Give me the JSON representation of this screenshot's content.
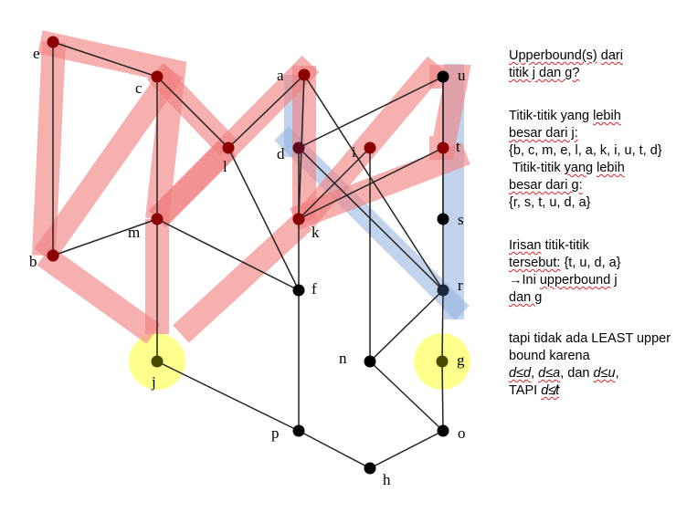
{
  "nodes": [
    {
      "id": "e",
      "label": "e",
      "color": "#8b0000"
    },
    {
      "id": "c",
      "label": "c",
      "color": "#8b0000"
    },
    {
      "id": "a",
      "label": "a",
      "color": "#8b0000"
    },
    {
      "id": "u",
      "label": "u",
      "color": "#000000"
    },
    {
      "id": "l",
      "label": "l",
      "color": "#8b0000"
    },
    {
      "id": "d",
      "label": "d",
      "color": "#5a0a1a"
    },
    {
      "id": "i",
      "label": "i",
      "color": "#8b0000"
    },
    {
      "id": "t",
      "label": "t",
      "color": "#8b0000"
    },
    {
      "id": "m",
      "label": "m",
      "color": "#8b0000"
    },
    {
      "id": "k",
      "label": "k",
      "color": "#8b0000"
    },
    {
      "id": "s",
      "label": "s",
      "color": "#000000"
    },
    {
      "id": "b",
      "label": "b",
      "color": "#8b0000"
    },
    {
      "id": "f",
      "label": "f",
      "color": "#000000"
    },
    {
      "id": "r",
      "label": "r",
      "color": "#1a2a3a"
    },
    {
      "id": "n",
      "label": "n",
      "color": "#000000"
    },
    {
      "id": "j",
      "label": "j",
      "color": "#4a4a00"
    },
    {
      "id": "g",
      "label": "g",
      "color": "#4a4a00"
    },
    {
      "id": "p",
      "label": "p",
      "color": "#000000"
    },
    {
      "id": "o",
      "label": "o",
      "color": "#000000"
    },
    {
      "id": "h",
      "label": "h",
      "color": "#000000"
    }
  ],
  "edges": [
    [
      "e",
      "c"
    ],
    [
      "e",
      "b"
    ],
    [
      "c",
      "m"
    ],
    [
      "c",
      "l"
    ],
    [
      "a",
      "l"
    ],
    [
      "a",
      "k"
    ],
    [
      "a",
      "r"
    ],
    [
      "u",
      "d"
    ],
    [
      "u",
      "t"
    ],
    [
      "u",
      "s"
    ],
    [
      "l",
      "f"
    ],
    [
      "d",
      "k"
    ],
    [
      "d",
      "r"
    ],
    [
      "i",
      "k"
    ],
    [
      "i",
      "n"
    ],
    [
      "t",
      "k"
    ],
    [
      "t",
      "s"
    ],
    [
      "m",
      "b"
    ],
    [
      "m",
      "f"
    ],
    [
      "m",
      "j"
    ],
    [
      "k",
      "f"
    ],
    [
      "s",
      "r"
    ],
    [
      "f",
      "p"
    ],
    [
      "r",
      "n"
    ],
    [
      "r",
      "g"
    ],
    [
      "j",
      "p"
    ],
    [
      "g",
      "o"
    ],
    [
      "n",
      "o"
    ],
    [
      "p",
      "h"
    ],
    [
      "o",
      "h"
    ]
  ],
  "highlight_colors": {
    "red": "#f08080",
    "blue": "#8fb0de",
    "yellow": "#ffff66"
  },
  "notes": {
    "q1": "Upperbound(s)",
    "q2": "dari",
    "q3": "titik j dan g?",
    "t1": "Titik-titik yang",
    "t2": "lebih",
    "t3": "besar dari j:",
    "t4": "{b, c, m, e, l, a, k, i, u, t, d}",
    "t5": "Titik-titik",
    "t6": "yang",
    "t7": "lebih",
    "t8": "besar dari g:",
    "t9": "{r, s, t, u, d, a}",
    "i1": "Irisan",
    "i2": "titik-titik",
    "i3": "tersebut:",
    "i4": "{t, u, d, a}",
    "i5": "→Ini",
    "i6": "upperbound",
    "i7": "j",
    "i8": "dan g",
    "l1": "tapi tidak ada LEAST upper bound karena",
    "l2": "d≤d",
    "l3": "d≤a",
    "l4": ", dan",
    "l5": "d≤u",
    "l6": "TAPI",
    "l7": "d≰t"
  }
}
